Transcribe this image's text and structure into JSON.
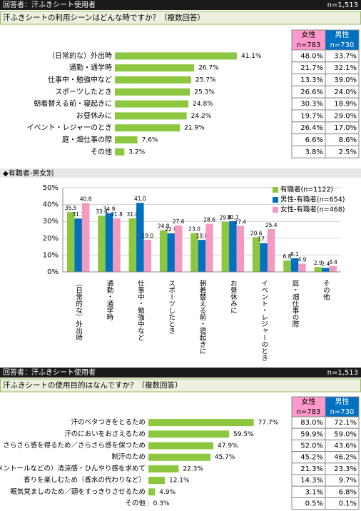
{
  "panels": [
    {
      "respondent": "回答者：汗ふきシート使用者",
      "n": "n=1,513",
      "question": "汗ふきシートの利用シーンはどんな時ですか？（複数回答）",
      "table": {
        "headers": [
          [
            "女性",
            "n=783"
          ],
          [
            "男性",
            "n=730"
          ]
        ],
        "rows": [
          [
            "48.0%",
            "33.7%"
          ],
          [
            "21.7%",
            "32.1%"
          ],
          [
            "13.3%",
            "39.0%"
          ],
          [
            "26.6%",
            "24.0%"
          ],
          [
            "30.3%",
            "18.9%"
          ],
          [
            "19.7%",
            "29.0%"
          ],
          [
            "26.4%",
            "17.0%"
          ],
          [
            "6.6%",
            "8.6%"
          ],
          [
            "3.8%",
            "2.5%"
          ]
        ]
      }
    },
    {
      "respondent": "回答者：汗ふきシート使用者",
      "n": "n=1,513",
      "question": "汗ふきシートの使用目的はなんですか？（複数回答）",
      "table": {
        "headers": [
          [
            "女性",
            "n=783"
          ],
          [
            "男性",
            "n=730"
          ]
        ],
        "rows": [
          [
            "83.0%",
            "72.1%"
          ],
          [
            "59.9%",
            "59.0%"
          ],
          [
            "52.0%",
            "43.6%"
          ],
          [
            "45.2%",
            "46.2%"
          ],
          [
            "21.3%",
            "23.3%"
          ],
          [
            "14.3%",
            "9.7%"
          ],
          [
            "3.1%",
            "6.8%"
          ],
          [
            "0.5%",
            "0.1%"
          ]
        ]
      }
    }
  ],
  "chart_data": [
    {
      "type": "hbar",
      "color": "#8dc63f",
      "categories": [
        "（日常的な）外出時",
        "通勤・通学時",
        "仕事中・勉強中など",
        "スポーツしたとき",
        "朝着替える前・寝起きに",
        "お昼休みに",
        "イベント・レジャーのとき",
        "庭・畑仕事の際",
        "その他"
      ],
      "values": [
        41.1,
        26.7,
        25.7,
        25.3,
        24.8,
        24.2,
        21.9,
        7.6,
        3.2
      ],
      "value_labels": [
        "41.1%",
        "26.7%",
        "25.7%",
        "25.3%",
        "24.8%",
        "24.2%",
        "21.9%",
        "7.6%",
        "3.2%"
      ]
    },
    {
      "type": "bar",
      "title": "◆有職者-男女別",
      "categories": [
        "（日常的な）外出時",
        "通勤・通学時",
        "仕事中・勉強中など",
        "スポーツしたとき",
        "朝着替える前・寝起きに",
        "お昼休みに",
        "イベント・レジャーのとき",
        "庭・畑仕事の際",
        "その他"
      ],
      "series": [
        {
          "name": "有職者(n=1122)",
          "color": "#8dc63f",
          "values": [
            35.5,
            33.4,
            31.8,
            24.8,
            23.0,
            29.8,
            20.6,
            6.8,
            2.9
          ],
          "value_labels": [
            "35.5",
            "33.4",
            "31.8",
            "24.8",
            "23.0",
            "29.8",
            "20.6",
            "6.8",
            "2.9"
          ]
        },
        {
          "name": "男性-有職者(n=654)",
          "color": "#0070c0",
          "values": [
            31.7,
            34.9,
            41.0,
            22.9,
            19.0,
            30.1,
            17.1,
            8.1,
            2.4
          ],
          "value_labels": [
            "31.7",
            "34.9",
            "41.0",
            "22.9",
            "19.0",
            "30.1",
            "17.1",
            "8.1",
            "2.4"
          ]
        },
        {
          "name": "女性-有職者(n=468)",
          "color": "#f49ac1",
          "values": [
            40.8,
            31.8,
            19.0,
            27.6,
            28.6,
            27.4,
            25.4,
            4.9,
            3.4
          ],
          "value_labels": [
            "40.8",
            "31.8",
            "19.0",
            "27.6",
            "28.6",
            "27.4",
            "25.4",
            "4.9",
            "3.4"
          ]
        }
      ],
      "ylim": [
        0,
        50
      ],
      "yticks": [
        {
          "value": 0,
          "label": "0%"
        },
        {
          "value": 10,
          "label": "10%"
        },
        {
          "value": 20,
          "label": "20%"
        },
        {
          "value": 30,
          "label": "30%"
        },
        {
          "value": 40,
          "label": "40%"
        },
        {
          "value": 50,
          "label": "50%"
        }
      ],
      "grid": true,
      "legend": "top-right"
    },
    {
      "type": "hbar",
      "color": "#8dc63f",
      "categories": [
        "汗のベタつきをとるため",
        "汗のにおいをおさえるため",
        "さらさら感を得るため／さらさら感を保つため",
        "制汗のため",
        "（メントールなどの）清涼感・ひんやり感を求めて",
        "香りを楽しむため（香水の代わりなど）",
        "眠気覚ましのため／頭をすっきりさせるため",
        "その他"
      ],
      "values": [
        77.7,
        59.5,
        47.9,
        45.7,
        22.3,
        12.1,
        4.9,
        0.3
      ],
      "value_labels": [
        "77.7%",
        "59.5%",
        "47.9%",
        "45.7%",
        "22.3%",
        "12.1%",
        "4.9%",
        "0.3%"
      ]
    }
  ]
}
